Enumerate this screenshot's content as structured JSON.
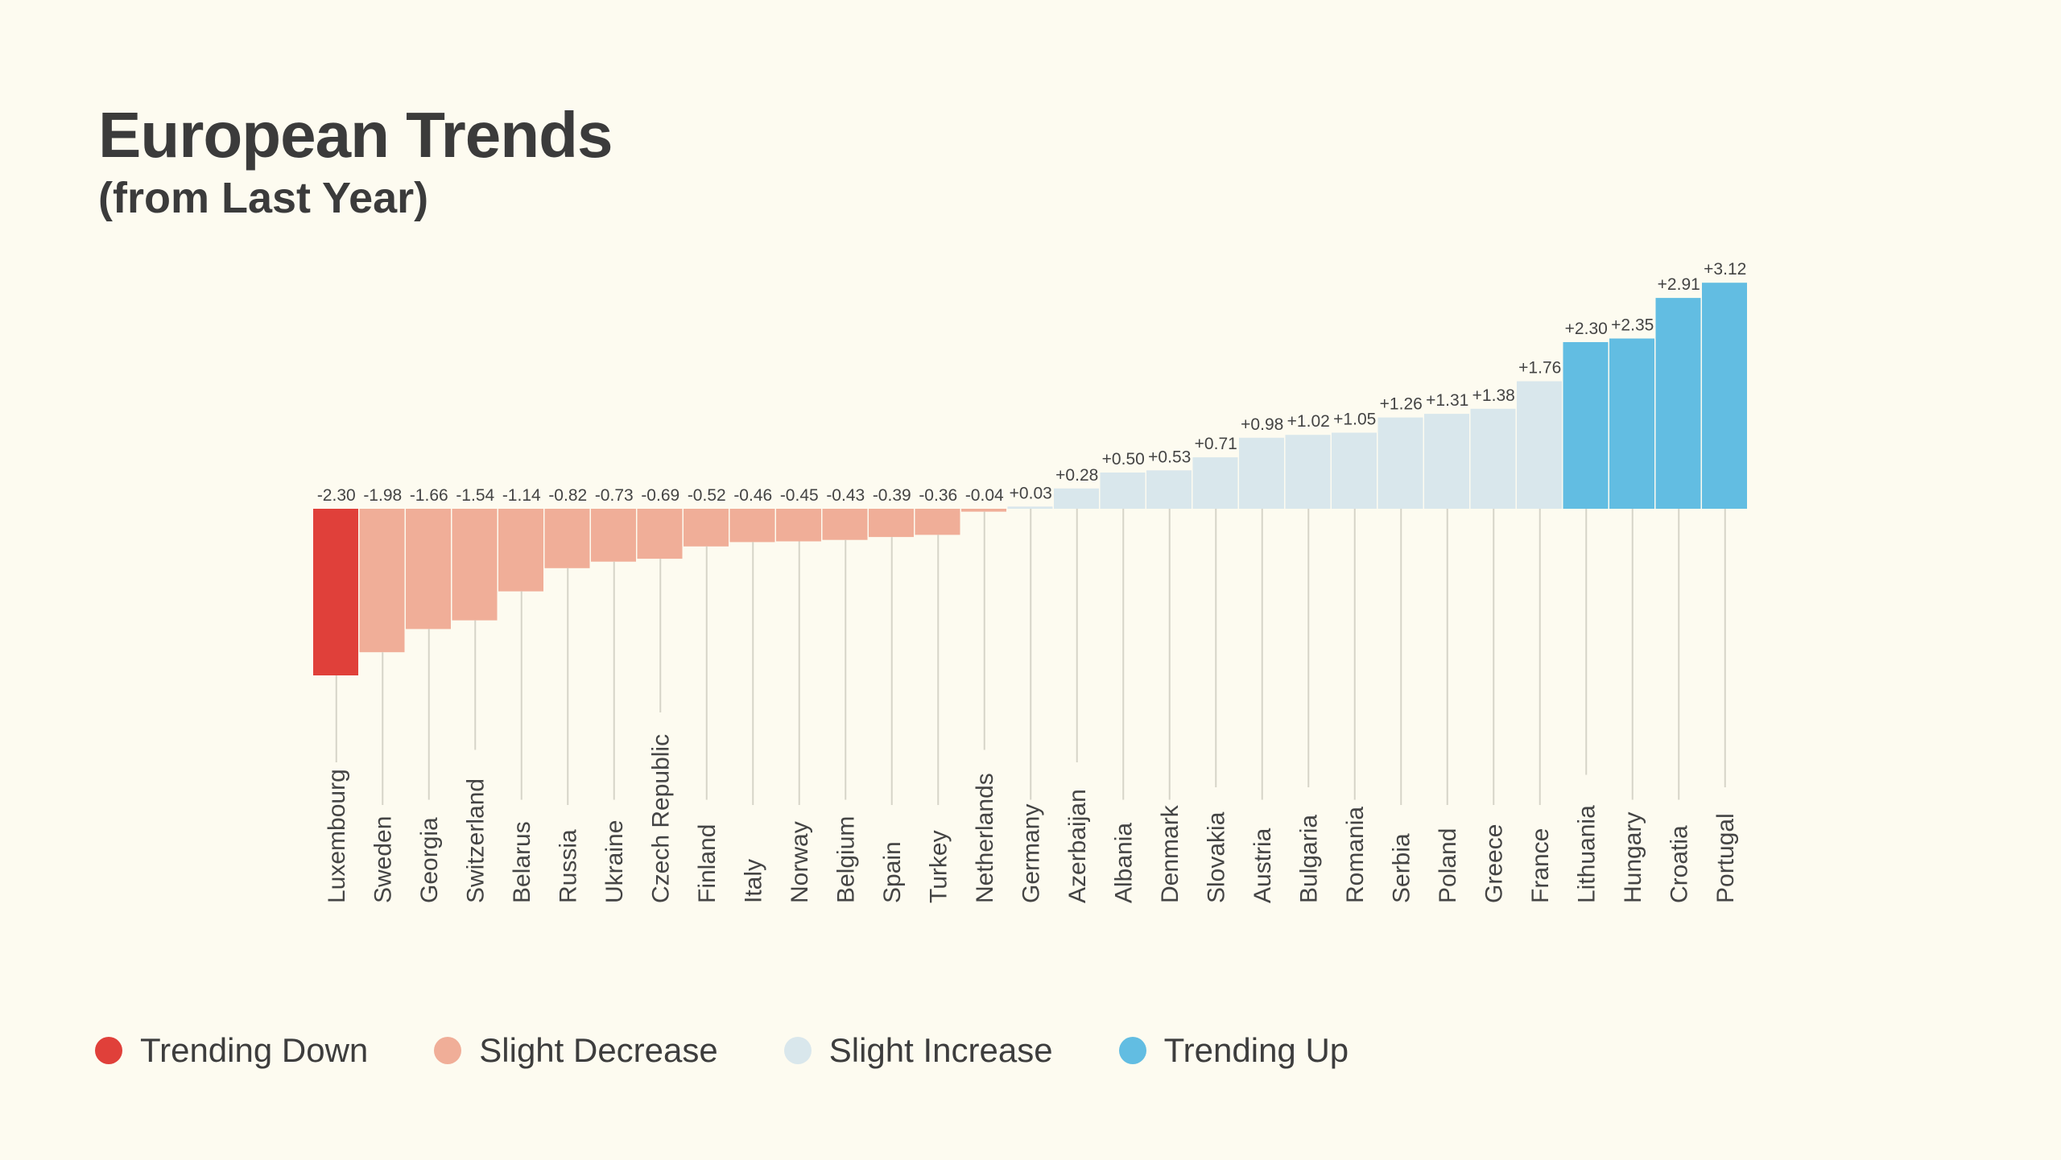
{
  "chart_data": {
    "type": "bar",
    "title": "European Trends",
    "subtitle": "(from Last Year)",
    "categories": [
      "Luxembourg",
      "Sweden",
      "Georgia",
      "Switzerland",
      "Belarus",
      "Russia",
      "Ukraine",
      "Czech Republic",
      "Finland",
      "Italy",
      "Norway",
      "Belgium",
      "Spain",
      "Turkey",
      "Netherlands",
      "Germany",
      "Azerbaijan",
      "Albania",
      "Denmark",
      "Slovakia",
      "Austria",
      "Bulgaria",
      "Romania",
      "Serbia",
      "Poland",
      "Greece",
      "France",
      "Lithuania",
      "Hungary",
      "Croatia",
      "Portugal"
    ],
    "values": [
      -2.3,
      -1.98,
      -1.66,
      -1.54,
      -1.14,
      -0.82,
      -0.73,
      -0.69,
      -0.52,
      -0.46,
      -0.45,
      -0.43,
      -0.39,
      -0.36,
      -0.04,
      0.03,
      0.28,
      0.5,
      0.53,
      0.71,
      0.98,
      1.02,
      1.05,
      1.26,
      1.31,
      1.38,
      1.76,
      2.3,
      2.35,
      2.91,
      3.12
    ],
    "value_labels": [
      "-2.30",
      "-1.98",
      "-1.66",
      "-1.54",
      "-1.14",
      "-0.82",
      "-0.73",
      "-0.69",
      "-0.52",
      "-0.46",
      "-0.45",
      "-0.43",
      "-0.39",
      "-0.36",
      "-0.04",
      "+0.03",
      "+0.28",
      "+0.50",
      "+0.53",
      "+0.71",
      "+0.98",
      "+1.02",
      "+1.05",
      "+1.26",
      "+1.31",
      "+1.38",
      "+1.76",
      "+2.30",
      "+2.35",
      "+2.91",
      "+3.12"
    ],
    "classes": [
      "trending_down",
      "slight_decrease",
      "slight_decrease",
      "slight_decrease",
      "slight_decrease",
      "slight_decrease",
      "slight_decrease",
      "slight_decrease",
      "slight_decrease",
      "slight_decrease",
      "slight_decrease",
      "slight_decrease",
      "slight_decrease",
      "slight_decrease",
      "slight_decrease",
      "slight_increase",
      "slight_increase",
      "slight_increase",
      "slight_increase",
      "slight_increase",
      "slight_increase",
      "slight_increase",
      "slight_increase",
      "slight_increase",
      "slight_increase",
      "slight_increase",
      "slight_increase",
      "trending_up",
      "trending_up",
      "trending_up",
      "trending_up"
    ],
    "ylim": [
      -2.3,
      3.12
    ],
    "grid": false,
    "xlabel": "",
    "ylabel": ""
  },
  "legend": [
    {
      "key": "trending_down",
      "label": "Trending Down",
      "color": "#e0403a"
    },
    {
      "key": "slight_decrease",
      "label": "Slight Decrease",
      "color": "#f0ae98"
    },
    {
      "key": "slight_increase",
      "label": "Slight Increase",
      "color": "#d9e7ec"
    },
    {
      "key": "trending_up",
      "label": "Trending Up",
      "color": "#62bde2"
    }
  ],
  "colors": {
    "background": "#fdfbf0",
    "leader_line": "#d6d4c8"
  }
}
